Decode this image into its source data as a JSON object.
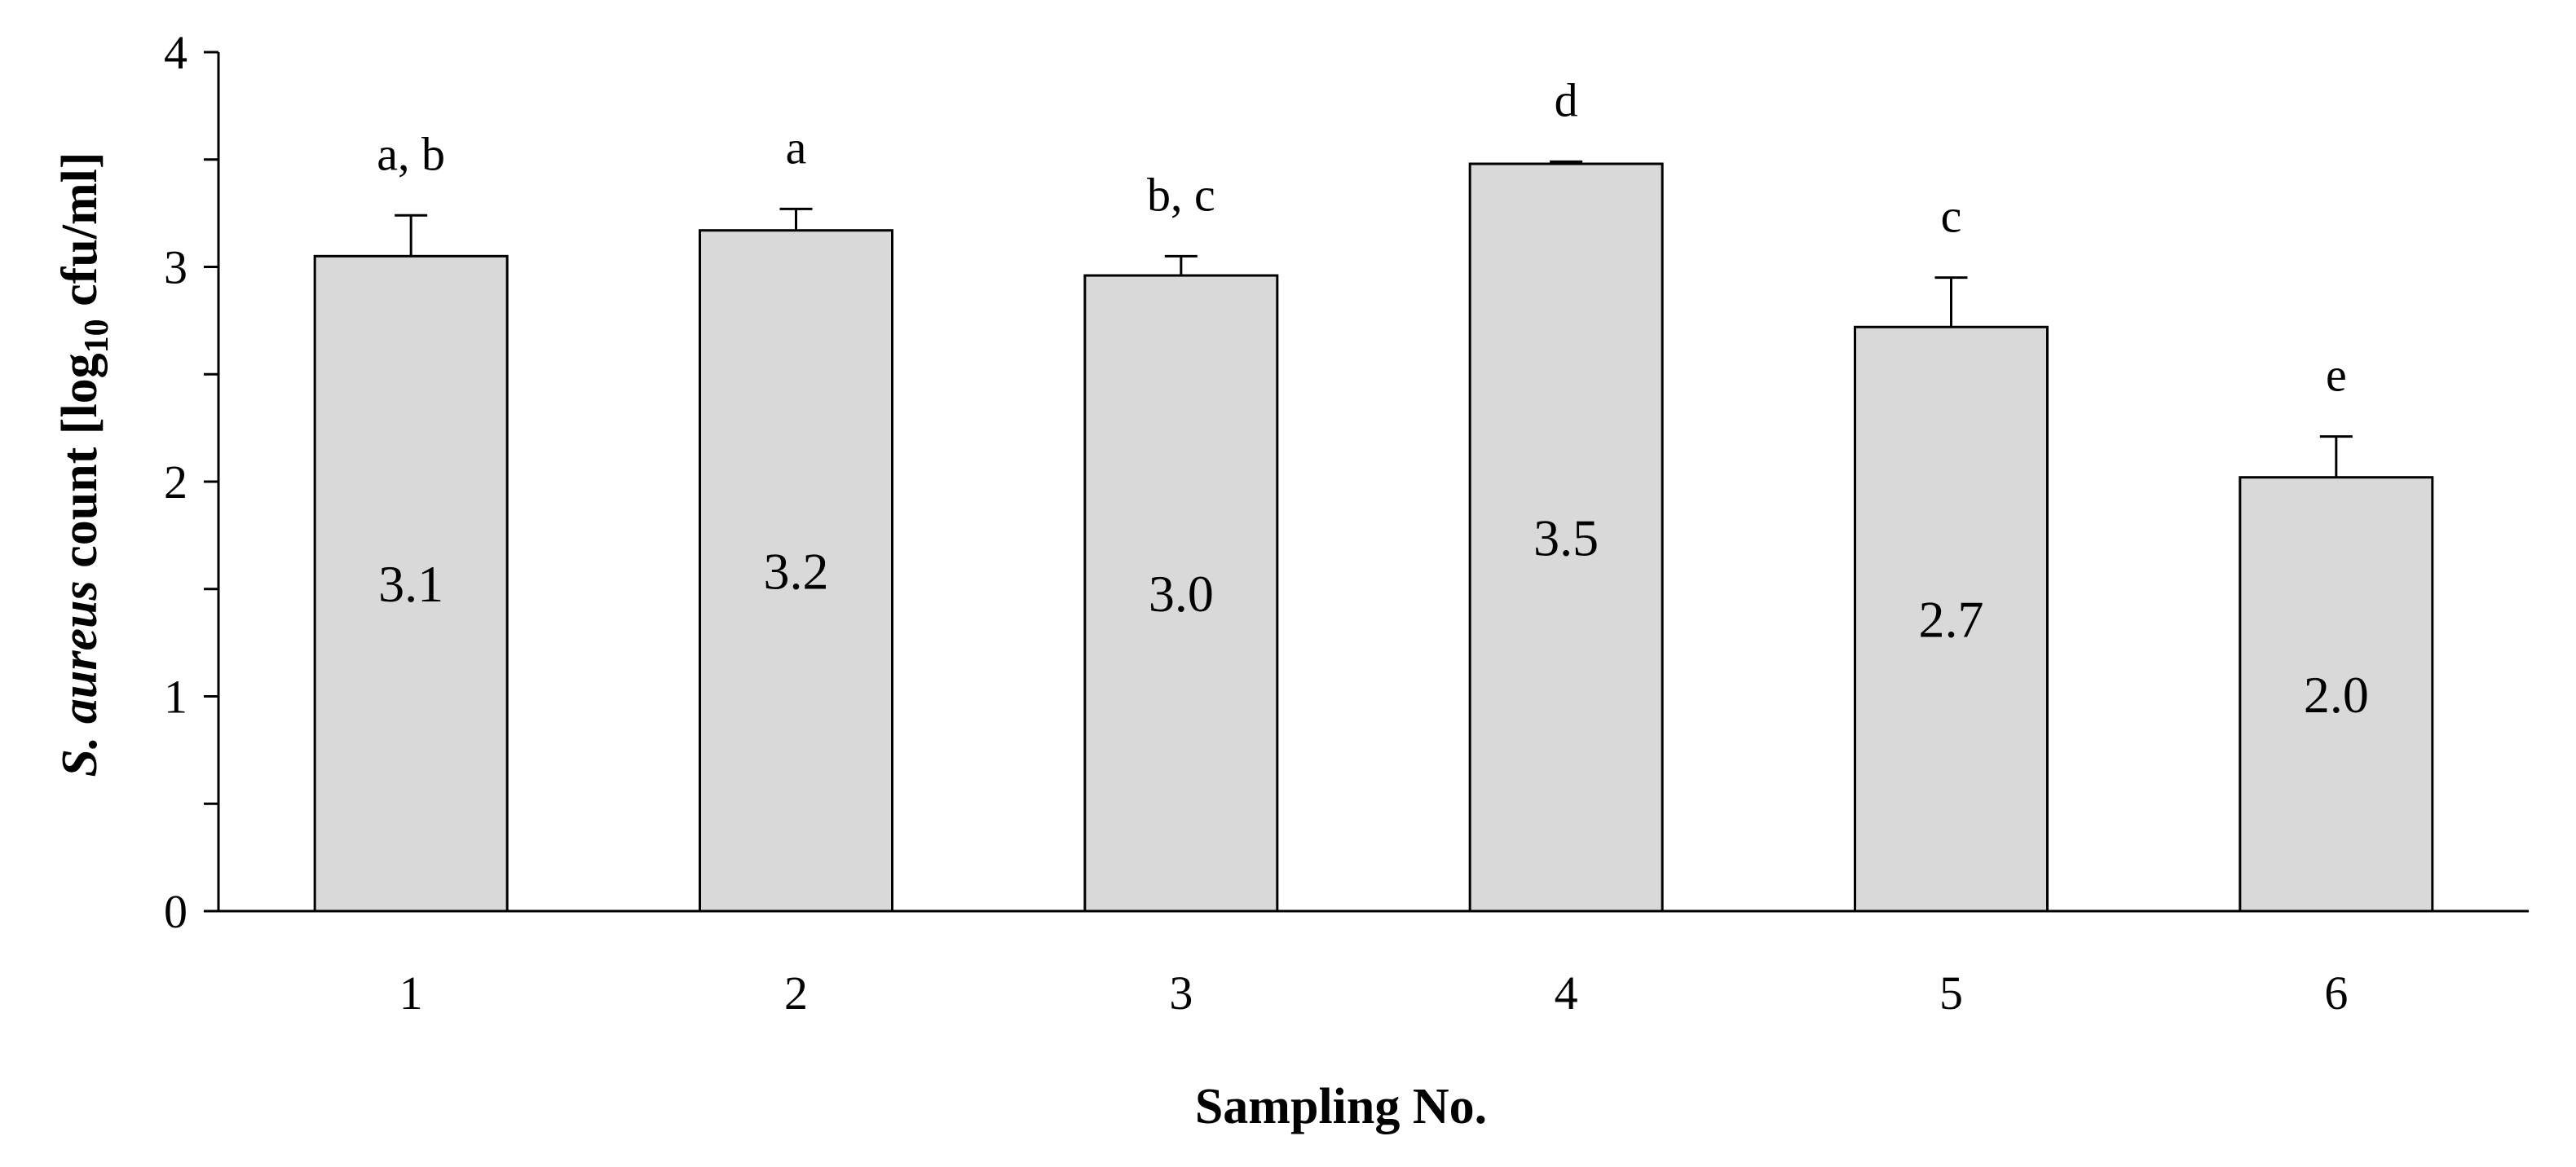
{
  "chart_data": {
    "type": "bar",
    "categories": [
      "1",
      "2",
      "3",
      "4",
      "5",
      "6"
    ],
    "values": [
      3.05,
      3.17,
      2.96,
      3.48,
      2.72,
      2.02
    ],
    "value_labels": [
      "3.1",
      "3.2",
      "3.0",
      "3.5",
      "2.7",
      "2.0"
    ],
    "error": [
      0.19,
      0.1,
      0.09,
      0.01,
      0.23,
      0.19
    ],
    "significance_labels": [
      "a, b",
      "a",
      "b, c",
      "d",
      "c",
      "e"
    ],
    "xlabel": "Sampling No.",
    "ylabel": {
      "italic": "S. aureus",
      "pre": " count [log",
      "sub": "10",
      "post": " cfu/ml]"
    },
    "ylim": [
      0,
      4
    ],
    "yticks": [
      "0",
      "1",
      "2",
      "3",
      "4"
    ],
    "grid": false,
    "legend": "none",
    "bar_color": "#d9d9d9",
    "edge_color": "#000000"
  }
}
